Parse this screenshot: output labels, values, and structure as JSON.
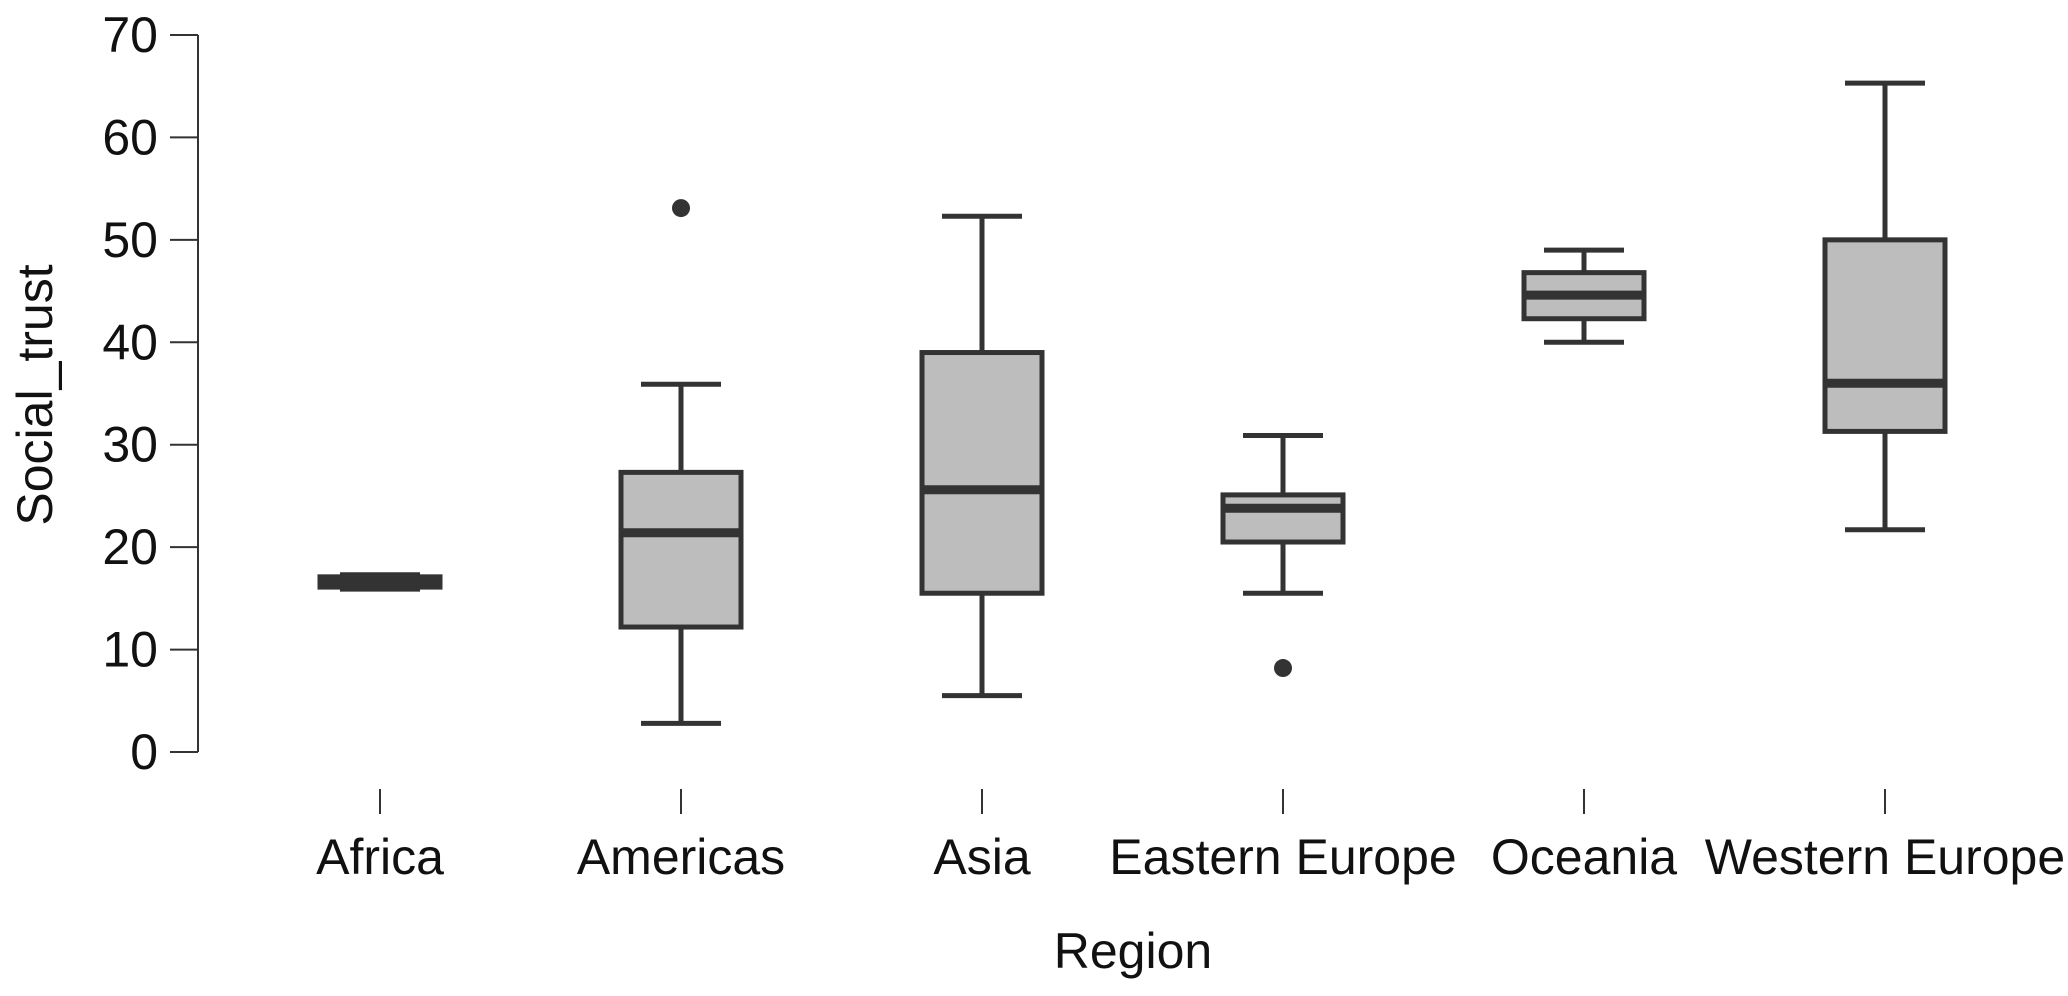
{
  "chart_data": {
    "type": "box",
    "xlabel": "Region",
    "ylabel": "Social_trust",
    "ylim": [
      0,
      70
    ],
    "yticks": [
      0,
      10,
      20,
      30,
      40,
      50,
      60,
      70
    ],
    "grid": false,
    "categories": [
      "Africa",
      "Americas",
      "Asia",
      "Eastern Europe",
      "Oceania",
      "Western Europe"
    ],
    "boxes": [
      {
        "category": "Africa",
        "whisker_low": 15.9,
        "q1": 16.1,
        "median": 16.6,
        "q3": 17.1,
        "whisker_high": 17.3,
        "outliers": []
      },
      {
        "category": "Americas",
        "whisker_low": 2.8,
        "q1": 12.2,
        "median": 21.4,
        "q3": 27.3,
        "whisker_high": 35.9,
        "outliers": [
          53.1
        ]
      },
      {
        "category": "Asia",
        "whisker_low": 5.5,
        "q1": 15.5,
        "median": 25.6,
        "q3": 39.0,
        "whisker_high": 52.3,
        "outliers": []
      },
      {
        "category": "Eastern Europe",
        "whisker_low": 15.5,
        "q1": 20.5,
        "median": 23.8,
        "q3": 25.1,
        "whisker_high": 30.9,
        "outliers": [
          8.2
        ]
      },
      {
        "category": "Oceania",
        "whisker_low": 40.0,
        "q1": 42.3,
        "median": 44.6,
        "q3": 46.8,
        "whisker_high": 49.0,
        "outliers": []
      },
      {
        "category": "Western Europe",
        "whisker_low": 21.7,
        "q1": 31.3,
        "median": 36.0,
        "q3": 50.0,
        "whisker_high": 65.3,
        "outliers": []
      }
    ],
    "colors": {
      "box_fill": "#bdbdbd",
      "stroke": "#333333"
    }
  }
}
